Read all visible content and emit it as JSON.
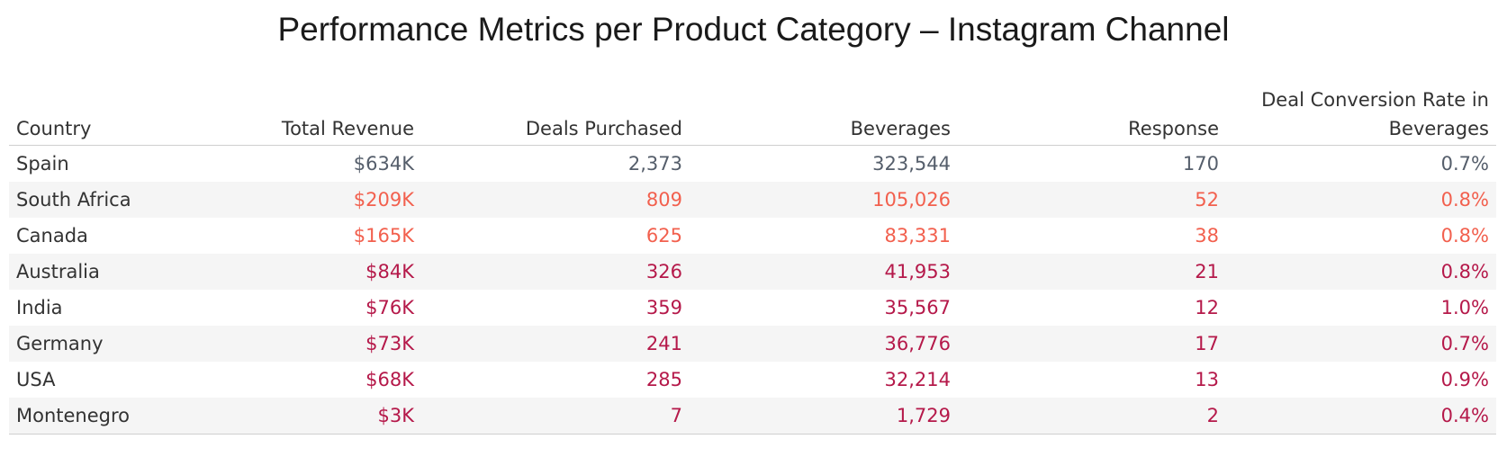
{
  "chart_data": {
    "type": "table",
    "title": "Performance Metrics per Product Category – Instagram Channel",
    "columns": [
      "Country",
      "Total Revenue",
      "Deals Purchased",
      "Beverages",
      "Response",
      "Deal Conversion Rate in Beverages"
    ],
    "rows": [
      {
        "country": "Spain",
        "revenue": "$634K",
        "deals": "2,373",
        "beverages": "323,544",
        "response": "170",
        "rate": "0.7%",
        "color": "#555e6b"
      },
      {
        "country": "South Africa",
        "revenue": "$209K",
        "deals": "809",
        "beverages": "105,026",
        "response": "52",
        "rate": "0.8%",
        "color": "#f2604e"
      },
      {
        "country": "Canada",
        "revenue": "$165K",
        "deals": "625",
        "beverages": "83,331",
        "response": "38",
        "rate": "0.8%",
        "color": "#f2604e"
      },
      {
        "country": "Australia",
        "revenue": "$84K",
        "deals": "326",
        "beverages": "41,953",
        "response": "21",
        "rate": "0.8%",
        "color": "#b5194a"
      },
      {
        "country": "India",
        "revenue": "$76K",
        "deals": "359",
        "beverages": "35,567",
        "response": "12",
        "rate": "1.0%",
        "color": "#b5194a"
      },
      {
        "country": "Germany",
        "revenue": "$73K",
        "deals": "241",
        "beverages": "36,776",
        "response": "17",
        "rate": "0.7%",
        "color": "#b5194a"
      },
      {
        "country": "USA",
        "revenue": "$68K",
        "deals": "285",
        "beverages": "32,214",
        "response": "13",
        "rate": "0.9%",
        "color": "#b5194a"
      },
      {
        "country": "Montenegro",
        "revenue": "$3K",
        "deals": "7",
        "beverages": "1,729",
        "response": "2",
        "rate": "0.4%",
        "color": "#b5194a"
      }
    ]
  }
}
